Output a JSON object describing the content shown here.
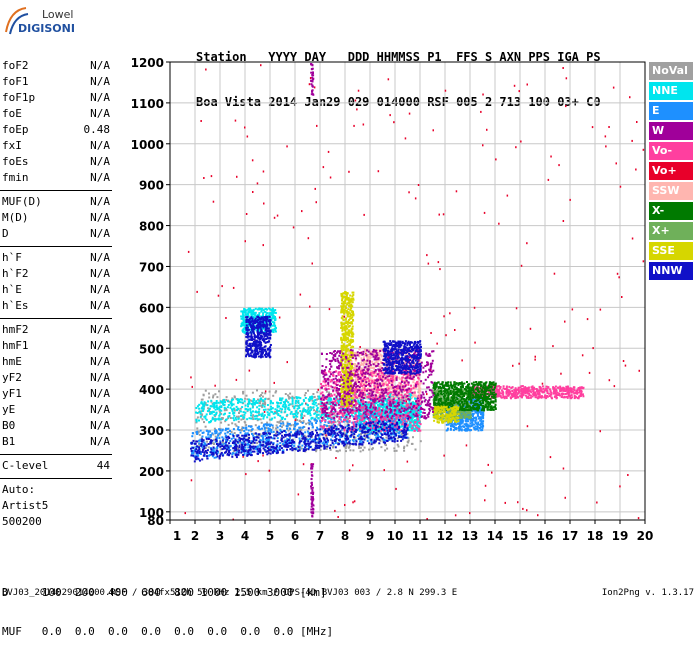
{
  "logo": {
    "line1": "Lowell",
    "line2": "DIGISONDE"
  },
  "header": {
    "labels": "Station   YYYY DAY   DDD HHMMSS P1  FFS S AXN PPS IGA PS",
    "values": "Boa Vista 2014 Jan29 029 014000 RSF 005 2 713 100 03+ C0"
  },
  "params_group1": [
    {
      "name": "foF2",
      "value": "N/A"
    },
    {
      "name": "foF1",
      "value": "N/A"
    },
    {
      "name": "foF1p",
      "value": "N/A"
    },
    {
      "name": "foE",
      "value": "N/A"
    },
    {
      "name": "foEp",
      "value": "0.48"
    },
    {
      "name": "fxI",
      "value": "N/A"
    },
    {
      "name": "foEs",
      "value": "N/A"
    },
    {
      "name": "fmin",
      "value": "N/A"
    }
  ],
  "params_group2": [
    {
      "name": "MUF(D)",
      "value": "N/A"
    },
    {
      "name": "M(D)",
      "value": "N/A"
    },
    {
      "name": "D",
      "value": "N/A"
    }
  ],
  "params_group3": [
    {
      "name": "h`F",
      "value": "N/A"
    },
    {
      "name": "h`F2",
      "value": "N/A"
    },
    {
      "name": "h`E",
      "value": "N/A"
    },
    {
      "name": "h`Es",
      "value": "N/A"
    }
  ],
  "params_group4": [
    {
      "name": "hmF2",
      "value": "N/A"
    },
    {
      "name": "hmF1",
      "value": "N/A"
    },
    {
      "name": "hmE",
      "value": "N/A"
    },
    {
      "name": "yF2",
      "value": "N/A"
    },
    {
      "name": "yF1",
      "value": "N/A"
    },
    {
      "name": "yE",
      "value": "N/A"
    },
    {
      "name": "B0",
      "value": "N/A"
    },
    {
      "name": "B1",
      "value": "N/A"
    }
  ],
  "params_group5": [
    {
      "name": "C-level",
      "value": "44"
    }
  ],
  "auto": {
    "line1": "Auto:",
    "line2": "Artist5",
    "line3": "500200"
  },
  "legend": [
    {
      "label": "NoVal",
      "color": "#a0a0a0"
    },
    {
      "label": "NNE",
      "color": "#00e5ee"
    },
    {
      "label": "E",
      "color": "#1e90ff"
    },
    {
      "label": "W",
      "color": "#a0009a"
    },
    {
      "label": "Vo-",
      "color": "#ff3f9f"
    },
    {
      "label": "Vo+",
      "color": "#e8002a"
    },
    {
      "label": "SSW",
      "color": "#ffb6b0"
    },
    {
      "label": "X-",
      "color": "#007a00"
    },
    {
      "label": "X+",
      "color": "#6fb05a"
    },
    {
      "label": "SSE",
      "color": "#d6d600"
    },
    {
      "label": "NNW",
      "color": "#1010c8"
    }
  ],
  "dtable": {
    "row1": "D     100  200  400  600  800 1000 1500 3000 [km]",
    "row2": "MUF   0.0  0.0  0.0  0.0  0.0  0.0  0.0  0.0 [MHz]"
  },
  "footer": {
    "left": "BVJ03_2014029014000.RSF / 384fx512h 50 kHz 2.5 km / DPS-4D BVJ03 003 / 2.8 N 299.3 E",
    "right": "Ion2Png v. 1.3.17"
  },
  "chart_data": {
    "type": "scatter",
    "title": "",
    "xlabel": "",
    "ylabel": "",
    "xlim": [
      1,
      20
    ],
    "ylim": [
      80,
      1200
    ],
    "xticks": [
      1,
      2,
      3,
      4,
      5,
      6,
      7,
      8,
      9,
      10,
      11,
      12,
      13,
      14,
      15,
      16,
      17,
      18,
      19,
      20
    ],
    "yticks": [
      80,
      100,
      200,
      300,
      400,
      500,
      600,
      700,
      800,
      900,
      1000,
      1100,
      1200
    ],
    "grid": true,
    "legend_placement": "right",
    "series": [
      {
        "name": "NNE",
        "color": "#00e5ee",
        "regions": [
          [
            2.0,
            11.0,
            320,
            375
          ],
          [
            3.8,
            5.2,
            540,
            600
          ],
          [
            8.5,
            11.0,
            300,
            370
          ]
        ]
      },
      {
        "name": "E",
        "color": "#1e90ff",
        "regions": [
          [
            1.8,
            10.5,
            230,
            300
          ],
          [
            12.0,
            13.5,
            300,
            380
          ]
        ]
      },
      {
        "name": "W",
        "color": "#a0009a",
        "regions": [
          [
            7.0,
            11.5,
            330,
            500
          ],
          [
            6.6,
            6.7,
            1120,
            1200
          ],
          [
            6.6,
            6.7,
            90,
            220
          ]
        ]
      },
      {
        "name": "Vo-",
        "color": "#ff3f9f",
        "regions": [
          [
            13.0,
            17.5,
            380,
            410
          ],
          [
            7.0,
            11.0,
            300,
            450
          ]
        ]
      },
      {
        "name": "Vo+",
        "color": "#e8002a",
        "regions": [
          [
            1.5,
            20.0,
            80,
            1200
          ]
        ]
      },
      {
        "name": "SSW",
        "color": "#ffb6b0",
        "regions": [
          [
            8.0,
            11.0,
            380,
            500
          ]
        ]
      },
      {
        "name": "X-",
        "color": "#007a00",
        "regions": [
          [
            11.5,
            14.0,
            350,
            420
          ]
        ]
      },
      {
        "name": "X+",
        "color": "#6fb05a",
        "regions": [
          [
            11.5,
            13.0,
            330,
            400
          ]
        ]
      },
      {
        "name": "SSE",
        "color": "#d6d600",
        "regions": [
          [
            11.5,
            12.5,
            320,
            360
          ],
          [
            7.8,
            8.3,
            360,
            640
          ]
        ]
      },
      {
        "name": "NNW",
        "color": "#1010c8",
        "regions": [
          [
            1.8,
            10.5,
            225,
            280
          ],
          [
            9.5,
            11.0,
            440,
            520
          ],
          [
            4.0,
            5.0,
            480,
            580
          ]
        ]
      },
      {
        "name": "NoVal",
        "color": "#a0a0a0",
        "regions": [
          [
            2.0,
            11.0,
            250,
            400
          ]
        ]
      }
    ]
  }
}
